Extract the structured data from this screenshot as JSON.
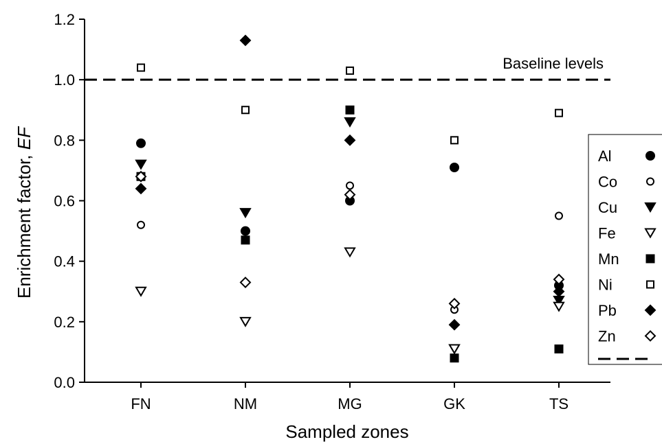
{
  "chart_data": {
    "type": "scatter",
    "title": "",
    "xlabel": "Sampled zones",
    "ylabel": "Enrichment factor, ",
    "ylabel_italic": "EF",
    "categories": [
      "FN",
      "NM",
      "MG",
      "GK",
      "TS"
    ],
    "ylim": [
      0,
      1.2
    ],
    "yticks": [
      "0.0",
      "0.2",
      "0.4",
      "0.6",
      "0.8",
      "1.0",
      "1.2"
    ],
    "grid": false,
    "legend_position": "right",
    "series": [
      {
        "name": "Al",
        "marker": "circle-filled",
        "values": [
          0.79,
          0.5,
          0.6,
          0.71,
          0.32
        ]
      },
      {
        "name": "Co",
        "marker": "circle-open",
        "values": [
          0.52,
          0.47,
          0.65,
          0.24,
          0.55
        ]
      },
      {
        "name": "Cu",
        "marker": "triangle-down-filled",
        "values": [
          0.72,
          0.56,
          0.86,
          0.11,
          0.27
        ]
      },
      {
        "name": "Fe",
        "marker": "triangle-down-open",
        "values": [
          0.3,
          0.2,
          0.43,
          0.11,
          0.25
        ]
      },
      {
        "name": "Mn",
        "marker": "square-filled",
        "values": [
          0.68,
          0.47,
          0.9,
          0.08,
          0.11
        ]
      },
      {
        "name": "Ni",
        "marker": "square-open",
        "values": [
          1.04,
          0.9,
          1.03,
          0.8,
          0.89
        ]
      },
      {
        "name": "Pb",
        "marker": "diamond-filled",
        "values": [
          0.64,
          1.13,
          0.8,
          0.19,
          0.3
        ]
      },
      {
        "name": "Zn",
        "marker": "diamond-open",
        "values": [
          0.68,
          0.33,
          0.62,
          0.26,
          0.34
        ]
      }
    ],
    "baseline": {
      "value": 1.0,
      "label": "Baseline levels",
      "style": "dashed"
    }
  }
}
